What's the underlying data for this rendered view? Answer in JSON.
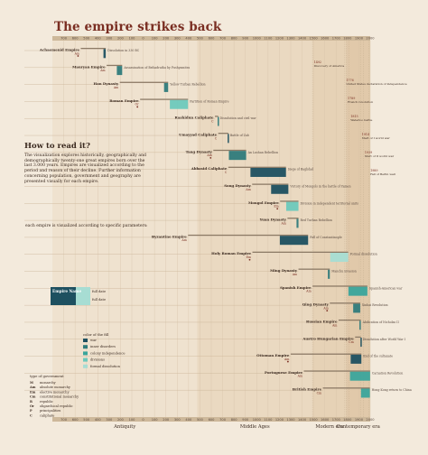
{
  "title": "The empire strikes back",
  "howto": {
    "heading": "How to read it?",
    "text": "The visualization explores historically, geographically and demographically twenty-one great empires born over the last 3.000 years. Empires are visualized according to the period and reason of their decline. Further information concerning population, government and geography are presented visually for each empire."
  },
  "legend": {
    "params_title": "each empire is visualized according to specific parameters:",
    "empire_name": "Empire Name",
    "full_date": "full date",
    "full_date_sub": "full date",
    "color_title": "color of the fill",
    "color_items": [
      {
        "label": "war",
        "color": "#1e5060"
      },
      {
        "label": "inner disorders",
        "color": "#2f7b7b"
      },
      {
        "label": "colony independence",
        "color": "#3aa59b"
      },
      {
        "label": "divisions",
        "color": "#6dc9bc"
      },
      {
        "label": "formal dissolution",
        "color": "#a7ddd3"
      }
    ],
    "gov_title": "type of government",
    "gov_items": [
      {
        "code": "M",
        "label": "monarchy"
      },
      {
        "code": "Am",
        "label": "absolute monarchy"
      },
      {
        "code": "Em",
        "label": "elective monarchy"
      },
      {
        "code": "Cm",
        "label": "constitutional monarchy"
      },
      {
        "code": "R",
        "label": "republic"
      },
      {
        "code": "Or",
        "label": "oligarchical republic"
      },
      {
        "code": "P",
        "label": "principalities"
      },
      {
        "code": "C",
        "label": "caliphate"
      }
    ],
    "eras": [
      "Antiquity",
      "Middle Ages",
      "Modern era",
      "Contemporary era"
    ],
    "colors": {
      "war": "#1e5060",
      "inner": "#2f7b7b",
      "colony": "#3aa59b",
      "divisions": "#6dc9bc",
      "formal": "#a7ddd3",
      "accent": "#7a2e22"
    }
  },
  "chart_data": {
    "type": "timeline",
    "title": "The empire strikes back",
    "x_ticks": [
      -700,
      -600,
      -500,
      -400,
      -300,
      -200,
      -100,
      0,
      100,
      200,
      300,
      400,
      500,
      600,
      700,
      800,
      900,
      1000,
      1100,
      1200,
      1300,
      1400,
      1500,
      1600,
      1700,
      1800,
      1900,
      2000
    ],
    "xlim": [
      -800,
      2000
    ],
    "empires": [
      {
        "name": "Achaemenid Empire",
        "gov": "Am",
        "start": -550,
        "end": -330,
        "decline_start": -350,
        "reason": "war",
        "note": "Dissolution in 330 BC"
      },
      {
        "name": "Mauryan Empire",
        "gov": "Am",
        "start": -322,
        "end": -185,
        "decline_start": -232,
        "reason": "inner",
        "note": "Assassination of Brihadratha by Pushyamitra"
      },
      {
        "name": "Han Dynasty",
        "gov": "Am",
        "start": -206,
        "end": 220,
        "decline_start": 184,
        "reason": "inner",
        "note": "Yellow Turban Rebellion"
      },
      {
        "name": "Roman Empire",
        "gov": "Or",
        "start": -27,
        "end": 395,
        "decline_start": 235,
        "reason": "divisions",
        "note": "Partition of Roman Empire"
      },
      {
        "name": "Rashidun Caliphate",
        "gov": "C",
        "start": 632,
        "end": 661,
        "decline_start": 656,
        "reason": "inner",
        "note": "Dissolution and civil war"
      },
      {
        "name": "Umayyad Caliphate",
        "gov": "C",
        "start": 661,
        "end": 750,
        "decline_start": 744,
        "reason": "war",
        "note": "Battle of Zab"
      },
      {
        "name": "Tang Dynasty",
        "gov": "Am",
        "start": 618,
        "end": 907,
        "decline_start": 755,
        "reason": "inner",
        "note": "An Lushan Rebellion"
      },
      {
        "name": "Abbasid Caliphate",
        "gov": "C",
        "start": 750,
        "end": 1258,
        "decline_start": 945,
        "reason": "war",
        "note": "Siege of Baghdad"
      },
      {
        "name": "Song Dynasty",
        "gov": "Am",
        "start": 960,
        "end": 1279,
        "decline_start": 1127,
        "reason": "war",
        "note": "Victory of Mongols in the battle of Yamen"
      },
      {
        "name": "Mongol Empire",
        "gov": "Em",
        "start": 1206,
        "end": 1368,
        "decline_start": 1260,
        "reason": "divisions",
        "note": "Division in independent territorial units"
      },
      {
        "name": "Yuan Dynasty",
        "gov": "Am",
        "start": 1271,
        "end": 1368,
        "decline_start": 1351,
        "reason": "inner",
        "note": "Red Turban Rebellion"
      },
      {
        "name": "Byzantine Empire",
        "gov": "Am",
        "start": 395,
        "end": 1453,
        "decline_start": 1204,
        "reason": "war",
        "note": "Fall of Constantinople"
      },
      {
        "name": "Holy Roman Empire",
        "gov": "Em",
        "start": 962,
        "end": 1806,
        "decline_start": 1648,
        "reason": "formal",
        "note": "Formal dissolution"
      },
      {
        "name": "Ming Dynasty",
        "gov": "Am",
        "start": 1368,
        "end": 1644,
        "decline_start": 1627,
        "reason": "inner",
        "note": "Manchu invasion"
      },
      {
        "name": "Spanish Empire",
        "gov": "Am",
        "start": 1492,
        "end": 1975,
        "decline_start": 1808,
        "reason": "colony",
        "note": "Spanish-American war"
      },
      {
        "name": "Qing Dynasty",
        "gov": "Am",
        "start": 1644,
        "end": 1912,
        "decline_start": 1850,
        "reason": "inner",
        "note": "Xinhai Revolution"
      },
      {
        "name": "Russian Empire",
        "gov": "Am",
        "start": 1721,
        "end": 1917,
        "decline_start": 1905,
        "reason": "inner",
        "note": "Abdication of Nicholas II"
      },
      {
        "name": "Austro Hungarian Empire",
        "gov": "Cm",
        "start": 1867,
        "end": 1918,
        "decline_start": 1914,
        "reason": "war",
        "note": "Dissolution after World War I"
      },
      {
        "name": "Ottoman Empire",
        "gov": "Am",
        "start": 1299,
        "end": 1922,
        "decline_start": 1828,
        "reason": "war",
        "note": "End of the sultanate"
      },
      {
        "name": "Portuguese Empire",
        "gov": "Am",
        "start": 1415,
        "end": 1999,
        "decline_start": 1822,
        "reason": "colony",
        "note": "Carnation Revolution"
      },
      {
        "name": "British Empire",
        "gov": "Cm",
        "start": 1583,
        "end": 1997,
        "decline_start": 1919,
        "reason": "colony",
        "note": "Hong Kong return to China"
      }
    ],
    "events": [
      {
        "year": 1492,
        "label": "Discovery of America"
      },
      {
        "year": 1776,
        "label": "United States declaration of independence"
      },
      {
        "year": 1789,
        "label": "French revolution"
      },
      {
        "year": 1815,
        "label": "Waterloo battle"
      },
      {
        "year": 1914,
        "label": "Start of I world war"
      },
      {
        "year": 1939,
        "label": "Start of II world war"
      },
      {
        "year": 1989,
        "label": "Fall of Berlin wall"
      }
    ]
  }
}
